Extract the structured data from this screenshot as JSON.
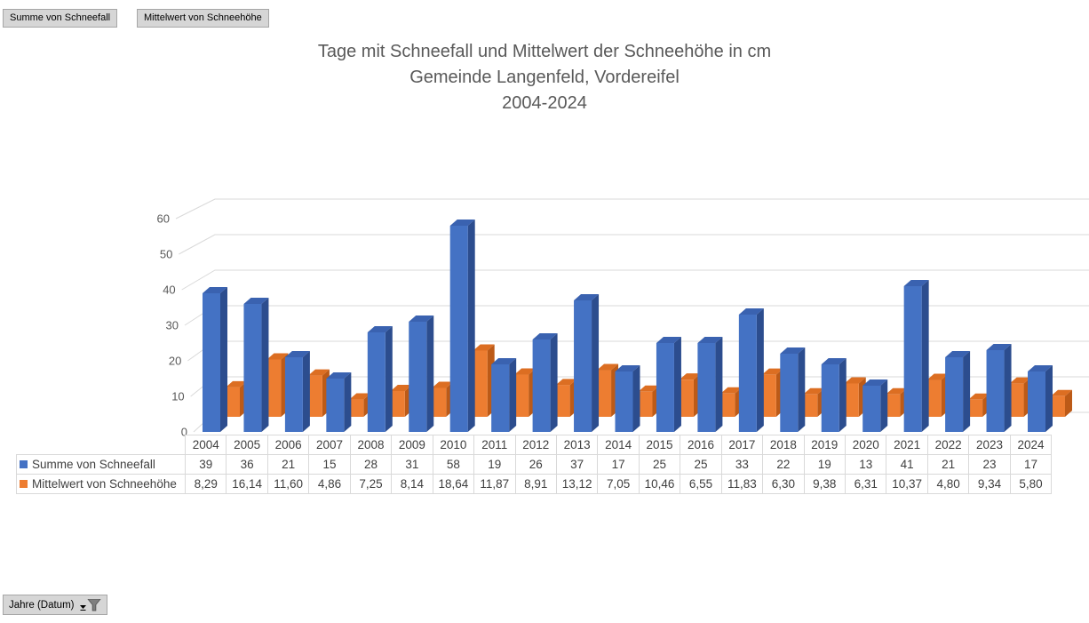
{
  "field_buttons": [
    {
      "label": "Summe von Schneefall"
    },
    {
      "label": "Mittelwert von Schneehöhe"
    }
  ],
  "title": {
    "line1": "Tage mit Schneefall und Mittelwert der Schneehöhe in cm",
    "line2": "Gemeinde Langenfeld, Vordereifel",
    "line3": "2004-2024"
  },
  "axis_filter_button": {
    "label": "Jahre (Datum)"
  },
  "chart_data": {
    "type": "bar",
    "style": "3d-clustered-column",
    "title": "Tage mit Schneefall und Mittelwert der Schneehöhe in cm Gemeinde Langenfeld, Vordereifel 2004-2024",
    "xlabel": "Jahre (Datum)",
    "ylabel": "",
    "ylim": [
      0,
      60
    ],
    "yticks": [
      0,
      10,
      20,
      30,
      40,
      50,
      60
    ],
    "grid": true,
    "grid_color": "#D9D9D9",
    "legend_position": "table-left",
    "categories": [
      "2004",
      "2005",
      "2006",
      "2007",
      "2008",
      "2009",
      "2010",
      "2011",
      "2012",
      "2013",
      "2014",
      "2015",
      "2016",
      "2017",
      "2018",
      "2019",
      "2020",
      "2021",
      "2022",
      "2023",
      "2024"
    ],
    "series": [
      {
        "name": "Summe von Schneefall",
        "color": "#4472C4",
        "colors": {
          "front": "#4472C4",
          "side": "#2C4D8E",
          "top": "#3A62B0"
        },
        "values": [
          39,
          36,
          21,
          15,
          28,
          31,
          58,
          19,
          26,
          37,
          17,
          25,
          25,
          33,
          22,
          19,
          13,
          41,
          21,
          23,
          17
        ],
        "display": [
          "39",
          "36",
          "21",
          "15",
          "28",
          "31",
          "58",
          "19",
          "26",
          "37",
          "17",
          "25",
          "25",
          "33",
          "22",
          "19",
          "13",
          "41",
          "21",
          "23",
          "17"
        ]
      },
      {
        "name": "Mittelwert von Schneehöhe",
        "color": "#ED7D31",
        "colors": {
          "front": "#ED7D31",
          "side": "#BC5A17",
          "top": "#DC6E22"
        },
        "values": [
          8.29,
          16.14,
          11.6,
          4.86,
          7.25,
          8.14,
          18.64,
          11.87,
          8.91,
          13.12,
          7.05,
          10.46,
          6.55,
          11.83,
          6.3,
          9.38,
          6.31,
          10.37,
          4.8,
          9.34,
          5.8
        ],
        "display": [
          "8,29",
          "16,14",
          "11,60",
          "4,86",
          "7,25",
          "8,14",
          "18,64",
          "11,87",
          "8,91",
          "13,12",
          "7,05",
          "10,46",
          "6,55",
          "11,83",
          "6,30",
          "9,38",
          "6,31",
          "10,37",
          "4,80",
          "9,34",
          "5,80"
        ]
      }
    ]
  }
}
